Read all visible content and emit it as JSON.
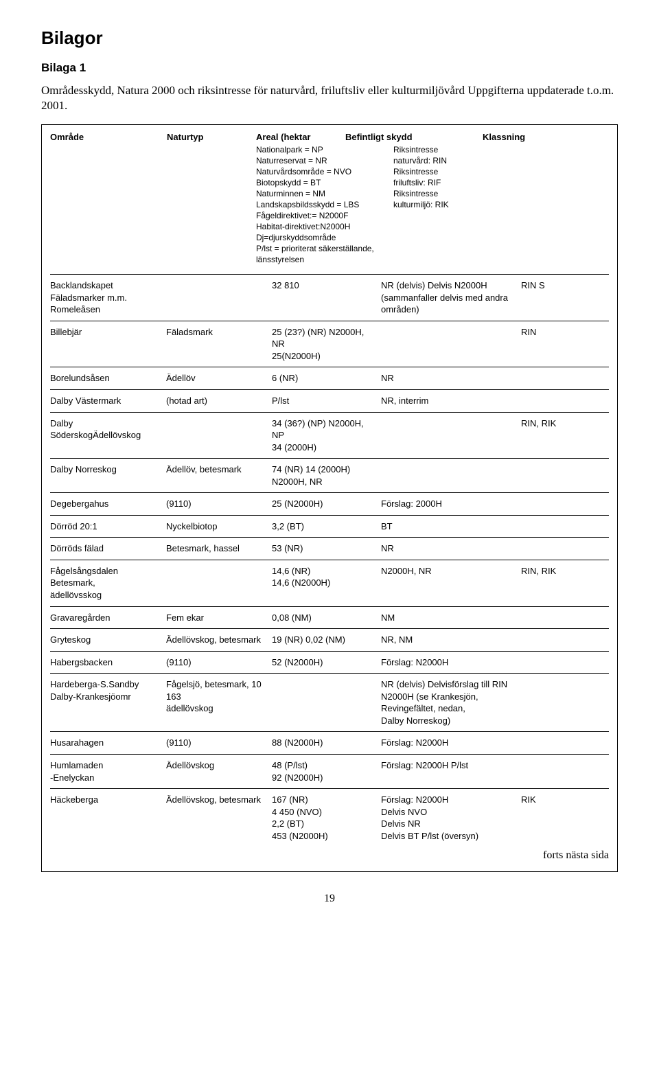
{
  "title": "Bilagor",
  "subtitle": "Bilaga 1",
  "intro": "Områdesskydd, Natura 2000 och riksintresse för naturvård, friluftsliv eller kulturmiljövård Uppgifterna uppdaterade t.o.m. 2001.",
  "header": {
    "c1": "Område",
    "c2": "Naturtyp",
    "c3": "Areal (hektar",
    "c4": "Befintligt skydd",
    "c5": "Klassning"
  },
  "legend": [
    {
      "l": "Nationalpark = NP",
      "r": "Riksintresse"
    },
    {
      "l": "Naturreservat = NR",
      "r": "naturvård: RIN"
    },
    {
      "l": "Naturvårdsområde = NVO",
      "r": "Riksintresse"
    },
    {
      "l": "Biotopskydd = BT",
      "r": "friluftsliv: RIF"
    },
    {
      "l": "Naturminnen = NM",
      "r": "Riksintresse"
    },
    {
      "l": "Landskapsbildsskydd = LBS",
      "r": "kulturmiljö: RIK"
    },
    {
      "l": "Fågeldirektivet:= N2000F",
      "r": ""
    },
    {
      "l": "Habitat-direktivet:N2000H",
      "r": ""
    },
    {
      "l": "Dj=djurskyddsområde",
      "r": ""
    },
    {
      "l": "P/lst = prioriterat säkerställande,",
      "r": ""
    },
    {
      "l": "länsstyrelsen",
      "r": ""
    }
  ],
  "rows": [
    {
      "c1": "Backlandskapet Fäladsmarker m.m.\nRomeleåsen",
      "c2": "",
      "c3": "32 810",
      "c4": "NR (delvis) Delvis N2000H (sammanfaller delvis med andra områden)",
      "c5": "RIN        S"
    },
    {
      "c1": "Billebjär",
      "c2": "Fäladsmark",
      "c3": "25 (23?) (NR) N2000H, NR\n25(N2000H)",
      "c4": "",
      "c5": "RIN"
    },
    {
      "c1": "Borelundsåsen",
      "c2": "Ädellöv",
      "c3": "6 (NR)",
      "c4": "NR",
      "c5": ""
    },
    {
      "c1": "Dalby Västermark",
      "c2": "(hotad art)",
      "c3": "P/lst",
      "c4": "NR, interrim",
      "c5": ""
    },
    {
      "c1": "Dalby SöderskogÄdellövskog",
      "c2": "",
      "c3": "34 (36?) (NP) N2000H, NP\n34 (2000H)",
      "c4": "",
      "c5": "RIN, RIK"
    },
    {
      "c1": "Dalby Norreskog",
      "c2": "Ädellöv, betesmark",
      "c3": "74 (NR) 14 (2000H) N2000H, NR",
      "c4": "",
      "c5": ""
    },
    {
      "c1": "Degebergahus",
      "c2": "(9110)",
      "c3": "25 (N2000H)",
      "c4": "Förslag: 2000H",
      "c5": ""
    },
    {
      "c1": "Dörröd 20:1",
      "c2": "Nyckelbiotop",
      "c3": "3,2 (BT)",
      "c4": "BT",
      "c5": ""
    },
    {
      "c1": "Dörröds fälad",
      "c2": "Betesmark, hassel",
      "c3": "53 (NR)",
      "c4": "NR",
      "c5": ""
    },
    {
      "c1": "Fågelsångsdalen Betesmark,\n                           ädellövsskog",
      "c2": "",
      "c3": "14,6 (NR)\n14,6 (N2000H)",
      "c4": "N2000H, NR",
      "c5": "RIN, RIK"
    },
    {
      "c1": "Gravaregården",
      "c2": "Fem ekar",
      "c3": "0,08 (NM)",
      "c4": "NM",
      "c5": ""
    },
    {
      "c1": "Gryteskog",
      "c2": "Ädellövskog, betesmark",
      "c3": "19 (NR) 0,02 (NM)",
      "c4": "NR, NM",
      "c5": ""
    },
    {
      "c1": "Habergsbacken",
      "c2": "(9110)",
      "c3": "52 (N2000H)",
      "c4": "Förslag: N2000H",
      "c5": ""
    },
    {
      "c1": "Hardeberga-S.Sandby\nDalby-Krankesjöomr",
      "c2": "Fågelsjö, betesmark, 10 163\nädellövskog",
      "c3": "",
      "c4": "NR (delvis) Delvisförslag till RIN\nN2000H (se Krankesjön, Revingefältet, nedan,\nDalby Norreskog)",
      "c5": ""
    },
    {
      "c1": "Husarahagen",
      "c2": "(9110)",
      "c3": "88 (N2000H)",
      "c4": "Förslag: N2000H",
      "c5": ""
    },
    {
      "c1": "Humlamaden\n-Enelyckan",
      "c2": "Ädellövskog",
      "c3": "48 (P/lst)\n92 (N2000H)",
      "c4": "Förslag: N2000H P/lst",
      "c5": ""
    },
    {
      "c1": "Häckeberga",
      "c2": "Ädellövskog, betesmark",
      "c3": "167 (NR)\n4 450 (NVO)\n2,2 (BT)\n453 (N2000H)",
      "c4": "Förslag: N2000H\nDelvis NVO\nDelvis NR\nDelvis BT P/lst (översyn)",
      "c5": "RIK"
    }
  ],
  "forts": "forts nästa sida",
  "page": "19"
}
